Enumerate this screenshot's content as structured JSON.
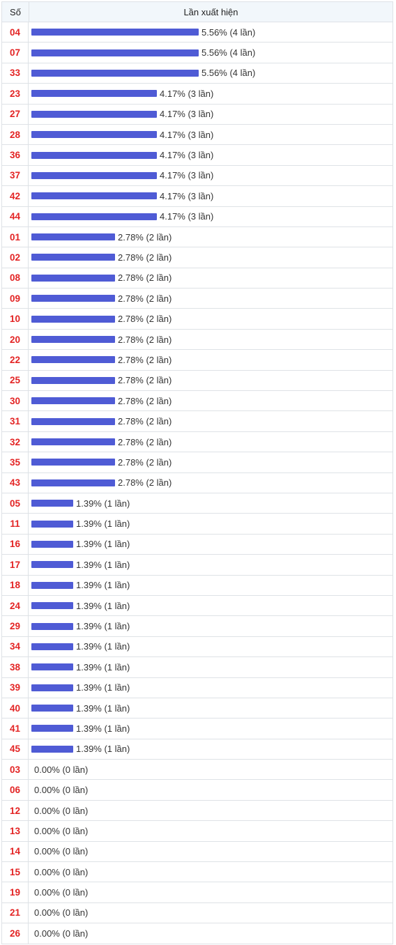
{
  "header": {
    "col_number": "Số",
    "col_freq": "Lần xuất hiện"
  },
  "bar_color": "#4f5bd5",
  "number_color": "#e32424",
  "rows": [
    {
      "number": "04",
      "percent": 5.56,
      "label": "5.56% (4 lần)"
    },
    {
      "number": "07",
      "percent": 5.56,
      "label": "5.56% (4 lần)"
    },
    {
      "number": "33",
      "percent": 5.56,
      "label": "5.56% (4 lần)"
    },
    {
      "number": "23",
      "percent": 4.17,
      "label": "4.17% (3 lần)"
    },
    {
      "number": "27",
      "percent": 4.17,
      "label": "4.17% (3 lần)"
    },
    {
      "number": "28",
      "percent": 4.17,
      "label": "4.17% (3 lần)"
    },
    {
      "number": "36",
      "percent": 4.17,
      "label": "4.17% (3 lần)"
    },
    {
      "number": "37",
      "percent": 4.17,
      "label": "4.17% (3 lần)"
    },
    {
      "number": "42",
      "percent": 4.17,
      "label": "4.17% (3 lần)"
    },
    {
      "number": "44",
      "percent": 4.17,
      "label": "4.17% (3 lần)"
    },
    {
      "number": "01",
      "percent": 2.78,
      "label": "2.78% (2 lần)"
    },
    {
      "number": "02",
      "percent": 2.78,
      "label": "2.78% (2 lần)"
    },
    {
      "number": "08",
      "percent": 2.78,
      "label": "2.78% (2 lần)"
    },
    {
      "number": "09",
      "percent": 2.78,
      "label": "2.78% (2 lần)"
    },
    {
      "number": "10",
      "percent": 2.78,
      "label": "2.78% (2 lần)"
    },
    {
      "number": "20",
      "percent": 2.78,
      "label": "2.78% (2 lần)"
    },
    {
      "number": "22",
      "percent": 2.78,
      "label": "2.78% (2 lần)"
    },
    {
      "number": "25",
      "percent": 2.78,
      "label": "2.78% (2 lần)"
    },
    {
      "number": "30",
      "percent": 2.78,
      "label": "2.78% (2 lần)"
    },
    {
      "number": "31",
      "percent": 2.78,
      "label": "2.78% (2 lần)"
    },
    {
      "number": "32",
      "percent": 2.78,
      "label": "2.78% (2 lần)"
    },
    {
      "number": "35",
      "percent": 2.78,
      "label": "2.78% (2 lần)"
    },
    {
      "number": "43",
      "percent": 2.78,
      "label": "2.78% (2 lần)"
    },
    {
      "number": "05",
      "percent": 1.39,
      "label": "1.39% (1 lần)"
    },
    {
      "number": "11",
      "percent": 1.39,
      "label": "1.39% (1 lần)"
    },
    {
      "number": "16",
      "percent": 1.39,
      "label": "1.39% (1 lần)"
    },
    {
      "number": "17",
      "percent": 1.39,
      "label": "1.39% (1 lần)"
    },
    {
      "number": "18",
      "percent": 1.39,
      "label": "1.39% (1 lần)"
    },
    {
      "number": "24",
      "percent": 1.39,
      "label": "1.39% (1 lần)"
    },
    {
      "number": "29",
      "percent": 1.39,
      "label": "1.39% (1 lần)"
    },
    {
      "number": "34",
      "percent": 1.39,
      "label": "1.39% (1 lần)"
    },
    {
      "number": "38",
      "percent": 1.39,
      "label": "1.39% (1 lần)"
    },
    {
      "number": "39",
      "percent": 1.39,
      "label": "1.39% (1 lần)"
    },
    {
      "number": "40",
      "percent": 1.39,
      "label": "1.39% (1 lần)"
    },
    {
      "number": "41",
      "percent": 1.39,
      "label": "1.39% (1 lần)"
    },
    {
      "number": "45",
      "percent": 1.39,
      "label": "1.39% (1 lần)"
    },
    {
      "number": "03",
      "percent": 0,
      "label": "0.00% (0 lần)"
    },
    {
      "number": "06",
      "percent": 0,
      "label": "0.00% (0 lần)"
    },
    {
      "number": "12",
      "percent": 0,
      "label": "0.00% (0 lần)"
    },
    {
      "number": "13",
      "percent": 0,
      "label": "0.00% (0 lần)"
    },
    {
      "number": "14",
      "percent": 0,
      "label": "0.00% (0 lần)"
    },
    {
      "number": "15",
      "percent": 0,
      "label": "0.00% (0 lần)"
    },
    {
      "number": "19",
      "percent": 0,
      "label": "0.00% (0 lần)"
    },
    {
      "number": "21",
      "percent": 0,
      "label": "0.00% (0 lần)"
    },
    {
      "number": "26",
      "percent": 0,
      "label": "0.00% (0 lần)"
    }
  ]
}
